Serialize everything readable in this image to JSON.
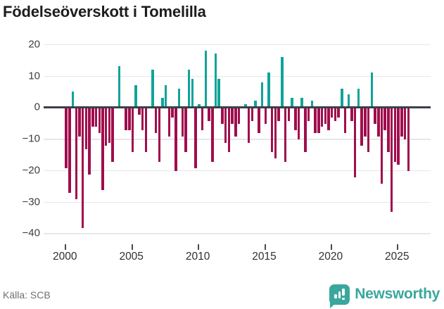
{
  "title": "Födelseöverskott i Tomelilla",
  "source": "Källa: SCB",
  "brand": {
    "name": "Newsworthy",
    "icon": "bar-chart-badge-icon"
  },
  "colors": {
    "positive": "#10a39b",
    "negative": "#a00d4d",
    "zero_line": "#3b4049",
    "grid": "#e7e7e7",
    "brand_teal": "#3aa79d",
    "title_text": "#1d1d1d",
    "axis_text": "#3d3d3d",
    "source_text": "#6f6f6f"
  },
  "chart_data": {
    "type": "bar",
    "title": "Födelseöverskott i Tomelilla",
    "period": "quarterly",
    "start_year": 2000,
    "end_year": 2025,
    "ylim": [
      -40,
      20
    ],
    "grid": true,
    "legend": false,
    "x_tick_years": [
      2000,
      2005,
      2010,
      2015,
      2020,
      2025
    ],
    "y_ticks": [
      {
        "v": 20,
        "label": "20"
      },
      {
        "v": 10,
        "label": "10"
      },
      {
        "v": 0,
        "label": "0"
      },
      {
        "v": -10,
        "label": "−10"
      },
      {
        "v": -20,
        "label": "−20"
      },
      {
        "v": -30,
        "label": "−30"
      },
      {
        "v": -40,
        "label": "−40"
      }
    ],
    "values": [
      -19,
      -27,
      5,
      -29,
      -9,
      -38,
      -13,
      -21,
      -6,
      -6,
      -8,
      -26,
      -12,
      -11,
      -17,
      0,
      13,
      0,
      -7,
      -7,
      -14,
      7,
      -2,
      -7,
      -14,
      0,
      12,
      -8,
      -17,
      3,
      7,
      -9,
      -3,
      -20,
      6,
      -9,
      -14,
      12,
      9,
      -19,
      1,
      -7,
      18,
      -4,
      -17,
      17,
      9,
      -5,
      -11,
      -14,
      -5,
      -9,
      -5,
      0,
      1,
      -11,
      -4,
      2,
      -8,
      8,
      -5,
      11,
      -14,
      -16,
      -4,
      16,
      -17,
      -4,
      3,
      -7,
      -10,
      3,
      -14,
      -4,
      2,
      -8,
      -8,
      -6,
      -5,
      -7,
      -3,
      -4,
      -3,
      6,
      -8,
      4,
      -4,
      -22,
      6,
      -12,
      -9,
      -14,
      11,
      -5,
      -9,
      -24,
      -7,
      -14,
      -33,
      -17,
      -18,
      -9,
      -10,
      -20
    ]
  }
}
